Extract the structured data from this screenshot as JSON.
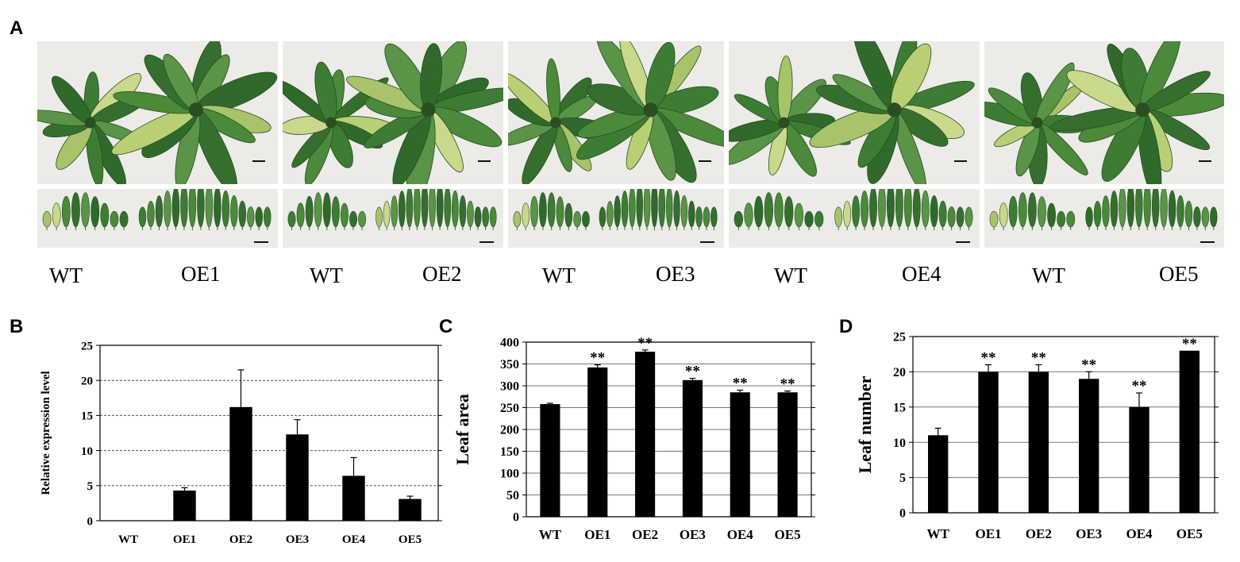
{
  "figure": {
    "panels": {
      "a": "A",
      "b": "B",
      "c": "C",
      "d": "D"
    },
    "pairs": [
      {
        "left": "WT",
        "right": "OE1"
      },
      {
        "left": "WT",
        "right": "OE2"
      },
      {
        "left": "WT",
        "right": "OE3"
      },
      {
        "left": "WT",
        "right": "OE4"
      },
      {
        "left": "WT",
        "right": "OE5"
      }
    ]
  },
  "chart_data": [
    {
      "panel": "B",
      "type": "bar",
      "categories": [
        "WT",
        "OE1",
        "OE2",
        "OE3",
        "OE4",
        "OE5"
      ],
      "values": [
        0,
        4.3,
        16.2,
        12.3,
        6.4,
        3.1
      ],
      "errors": [
        0,
        0.4,
        5.3,
        2.1,
        2.6,
        0.4
      ],
      "significance": [
        "",
        "",
        "",
        "",
        "",
        ""
      ],
      "ylabel": "Relative expression level",
      "xlabel": "",
      "ylim": [
        0,
        25
      ],
      "yticks": [
        0,
        5,
        10,
        15,
        20,
        25
      ],
      "grid": "dashed horizontal",
      "bar_color": "#000000"
    },
    {
      "panel": "C",
      "type": "bar",
      "categories": [
        "WT",
        "OE1",
        "OE2",
        "OE3",
        "OE4",
        "OE5"
      ],
      "values": [
        258,
        342,
        378,
        313,
        285,
        285
      ],
      "errors": [
        2,
        6,
        4,
        4,
        5,
        3
      ],
      "significance": [
        "",
        "**",
        "**",
        "**",
        "**",
        "**"
      ],
      "ylabel": "Leaf area",
      "xlabel": "",
      "ylim": [
        0,
        400
      ],
      "yticks": [
        0,
        50,
        100,
        150,
        200,
        250,
        300,
        350,
        400
      ],
      "grid": "solid horizontal",
      "bar_color": "#000000"
    },
    {
      "panel": "D",
      "type": "bar",
      "categories": [
        "WT",
        "OE1",
        "OE2",
        "OE3",
        "OE4",
        "OE5"
      ],
      "values": [
        11,
        20,
        20,
        19,
        15,
        23
      ],
      "errors": [
        1,
        1,
        1,
        1,
        2,
        0
      ],
      "significance": [
        "",
        "**",
        "**",
        "**",
        "**",
        "**"
      ],
      "ylabel": "Leaf number",
      "xlabel": "",
      "ylim": [
        0,
        25
      ],
      "yticks": [
        0,
        5,
        10,
        15,
        20,
        25
      ],
      "grid": "solid horizontal",
      "bar_color": "#000000"
    }
  ]
}
